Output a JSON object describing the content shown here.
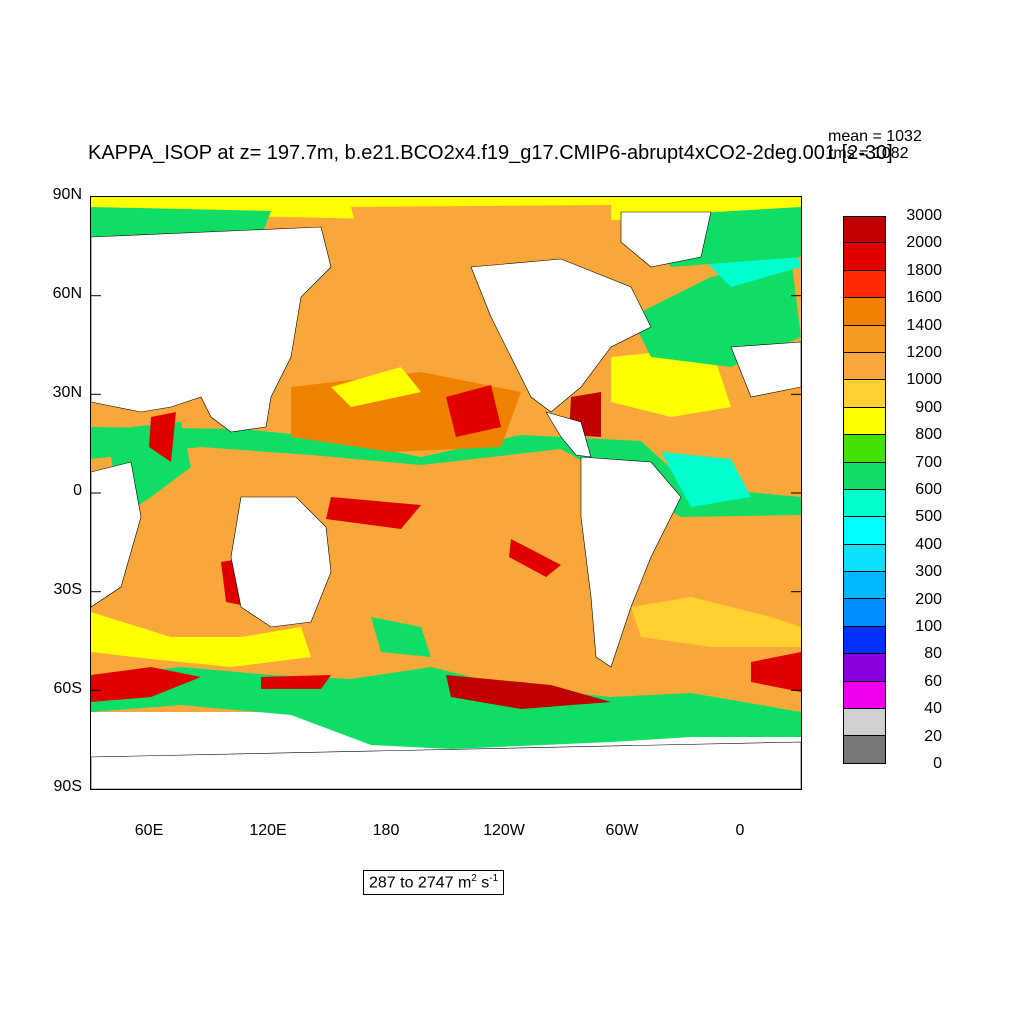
{
  "title": "KAPPA_ISOP at z= 197.7m, b.e21.BCO2x4.f19_g17.CMIP6-abrupt4xCO2-2deg.001 [2-30]",
  "stats": {
    "mean": "mean = 1032",
    "rms": "rms = 1082"
  },
  "lat_labels": [
    "90N",
    "60N",
    "30N",
    "0",
    "30S",
    "60S",
    "90S"
  ],
  "lon_labels": [
    "60E",
    "120E",
    "180",
    "120W",
    "60W",
    "0"
  ],
  "colorbar": {
    "levels": [
      "3000",
      "2000",
      "1800",
      "1600",
      "1400",
      "1200",
      "1000",
      "900",
      "800",
      "700",
      "600",
      "500",
      "400",
      "300",
      "200",
      "100",
      "80",
      "60",
      "40",
      "20",
      "0"
    ],
    "colors": [
      "#c00000",
      "#e00000",
      "#ff2a00",
      "#f08000",
      "#f89a20",
      "#f8a83a",
      "#ffd030",
      "#ffff00",
      "#44e000",
      "#10dd66",
      "#00ffcc",
      "#00ffff",
      "#10e0ff",
      "#00b8ff",
      "#0090ff",
      "#0030ff",
      "#8800dd",
      "#ee00ee",
      "#d0d0d0",
      "#777777"
    ]
  },
  "range_label": {
    "text": "287 to 2747 m",
    "sup1": "2",
    "mid": " s",
    "sup2": "-1"
  }
}
